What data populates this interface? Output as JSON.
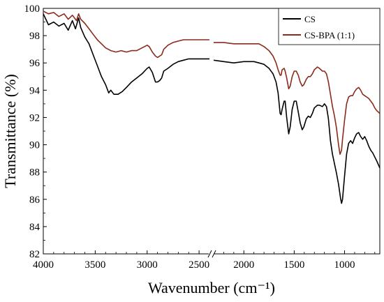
{
  "chart_data": {
    "type": "line",
    "xlabel": "Wavenumber (cm⁻¹)",
    "ylabel": "Transmittance (%)",
    "xlim": [
      4000,
      650
    ],
    "x_break": [
      2400,
      2300
    ],
    "ylim": [
      82,
      100
    ],
    "x_ticks": [
      4000,
      3500,
      3000,
      2500,
      2000,
      1500,
      1000
    ],
    "x_tick_labels": [
      "4000",
      "3500",
      "3000",
      "2500",
      "2000",
      "1500",
      "1000"
    ],
    "y_ticks": [
      82,
      84,
      86,
      88,
      90,
      92,
      94,
      96,
      98,
      100
    ],
    "y_tick_labels": [
      "82",
      "84",
      "86",
      "88",
      "90",
      "92",
      "94",
      "96",
      "98",
      "100"
    ],
    "legend_position": "top-right",
    "series": [
      {
        "name": "CS",
        "color": "#000000",
        "points": [
          [
            4000,
            99.6
          ],
          [
            3950,
            98.8
          ],
          [
            3900,
            99.0
          ],
          [
            3850,
            98.7
          ],
          [
            3800,
            98.9
          ],
          [
            3760,
            98.4
          ],
          [
            3720,
            99.1
          ],
          [
            3690,
            98.5
          ],
          [
            3660,
            99.3
          ],
          [
            3640,
            98.6
          ],
          [
            3600,
            97.9
          ],
          [
            3560,
            97.4
          ],
          [
            3520,
            96.6
          ],
          [
            3480,
            95.8
          ],
          [
            3440,
            95.0
          ],
          [
            3400,
            94.4
          ],
          [
            3370,
            93.8
          ],
          [
            3350,
            94.0
          ],
          [
            3320,
            93.7
          ],
          [
            3280,
            93.7
          ],
          [
            3240,
            93.9
          ],
          [
            3200,
            94.2
          ],
          [
            3150,
            94.6
          ],
          [
            3100,
            94.9
          ],
          [
            3050,
            95.2
          ],
          [
            3000,
            95.6
          ],
          [
            2980,
            95.7
          ],
          [
            2950,
            95.3
          ],
          [
            2920,
            94.6
          ],
          [
            2900,
            94.6
          ],
          [
            2880,
            94.7
          ],
          [
            2860,
            94.9
          ],
          [
            2840,
            95.4
          ],
          [
            2800,
            95.6
          ],
          [
            2750,
            95.9
          ],
          [
            2700,
            96.1
          ],
          [
            2650,
            96.2
          ],
          [
            2600,
            96.3
          ],
          [
            2500,
            96.3
          ],
          [
            2400,
            96.3
          ],
          [
            2300,
            96.2
          ],
          [
            2200,
            96.1
          ],
          [
            2100,
            96.0
          ],
          [
            2000,
            96.1
          ],
          [
            1900,
            96.1
          ],
          [
            1850,
            96.0
          ],
          [
            1800,
            95.9
          ],
          [
            1750,
            95.6
          ],
          [
            1710,
            95.2
          ],
          [
            1680,
            94.6
          ],
          [
            1660,
            93.8
          ],
          [
            1640,
            92.3
          ],
          [
            1630,
            92.2
          ],
          [
            1620,
            92.6
          ],
          [
            1600,
            93.2
          ],
          [
            1590,
            93.2
          ],
          [
            1575,
            92.0
          ],
          [
            1555,
            90.8
          ],
          [
            1540,
            91.3
          ],
          [
            1520,
            92.6
          ],
          [
            1500,
            93.2
          ],
          [
            1480,
            93.2
          ],
          [
            1460,
            92.4
          ],
          [
            1440,
            91.6
          ],
          [
            1420,
            91.1
          ],
          [
            1405,
            91.3
          ],
          [
            1380,
            91.9
          ],
          [
            1360,
            92.1
          ],
          [
            1340,
            92.0
          ],
          [
            1320,
            92.3
          ],
          [
            1300,
            92.7
          ],
          [
            1270,
            92.9
          ],
          [
            1250,
            92.9
          ],
          [
            1220,
            92.8
          ],
          [
            1200,
            93.0
          ],
          [
            1180,
            92.8
          ],
          [
            1160,
            91.9
          ],
          [
            1140,
            90.3
          ],
          [
            1120,
            89.3
          ],
          [
            1100,
            88.6
          ],
          [
            1080,
            87.9
          ],
          [
            1060,
            87.1
          ],
          [
            1040,
            86.1
          ],
          [
            1030,
            85.7
          ],
          [
            1020,
            86.0
          ],
          [
            1000,
            87.7
          ],
          [
            980,
            89.3
          ],
          [
            960,
            90.1
          ],
          [
            940,
            90.3
          ],
          [
            920,
            90.1
          ],
          [
            900,
            90.5
          ],
          [
            880,
            90.8
          ],
          [
            860,
            90.9
          ],
          [
            840,
            90.6
          ],
          [
            820,
            90.4
          ],
          [
            800,
            90.6
          ],
          [
            780,
            90.3
          ],
          [
            760,
            89.9
          ],
          [
            740,
            89.6
          ],
          [
            720,
            89.4
          ],
          [
            700,
            89.1
          ],
          [
            680,
            88.8
          ],
          [
            650,
            88.3
          ]
        ]
      },
      {
        "name": "CS-BPA (1:1)",
        "color": "#8b2a1a",
        "points": [
          [
            4000,
            99.8
          ],
          [
            3950,
            99.6
          ],
          [
            3900,
            99.7
          ],
          [
            3850,
            99.4
          ],
          [
            3800,
            99.6
          ],
          [
            3760,
            99.2
          ],
          [
            3720,
            99.5
          ],
          [
            3680,
            99.1
          ],
          [
            3660,
            99.6
          ],
          [
            3640,
            99.2
          ],
          [
            3600,
            98.9
          ],
          [
            3560,
            98.5
          ],
          [
            3520,
            98.1
          ],
          [
            3480,
            97.7
          ],
          [
            3440,
            97.4
          ],
          [
            3400,
            97.1
          ],
          [
            3350,
            96.9
          ],
          [
            3300,
            96.8
          ],
          [
            3250,
            96.9
          ],
          [
            3200,
            96.8
          ],
          [
            3150,
            96.9
          ],
          [
            3100,
            96.9
          ],
          [
            3050,
            97.1
          ],
          [
            3000,
            97.3
          ],
          [
            2980,
            97.2
          ],
          [
            2950,
            96.8
          ],
          [
            2920,
            96.5
          ],
          [
            2900,
            96.4
          ],
          [
            2880,
            96.5
          ],
          [
            2860,
            96.6
          ],
          [
            2840,
            97.0
          ],
          [
            2800,
            97.3
          ],
          [
            2750,
            97.5
          ],
          [
            2700,
            97.6
          ],
          [
            2650,
            97.7
          ],
          [
            2600,
            97.7
          ],
          [
            2500,
            97.7
          ],
          [
            2400,
            97.7
          ],
          [
            2300,
            97.5
          ],
          [
            2200,
            97.5
          ],
          [
            2100,
            97.4
          ],
          [
            2000,
            97.4
          ],
          [
            1900,
            97.4
          ],
          [
            1850,
            97.4
          ],
          [
            1800,
            97.2
          ],
          [
            1750,
            96.9
          ],
          [
            1710,
            96.5
          ],
          [
            1680,
            96.0
          ],
          [
            1660,
            95.5
          ],
          [
            1640,
            95.1
          ],
          [
            1630,
            95.1
          ],
          [
            1620,
            95.5
          ],
          [
            1600,
            95.6
          ],
          [
            1590,
            95.4
          ],
          [
            1575,
            94.9
          ],
          [
            1555,
            94.1
          ],
          [
            1540,
            94.3
          ],
          [
            1520,
            95.0
          ],
          [
            1500,
            95.4
          ],
          [
            1480,
            95.4
          ],
          [
            1460,
            95.1
          ],
          [
            1440,
            94.6
          ],
          [
            1420,
            94.3
          ],
          [
            1405,
            94.4
          ],
          [
            1380,
            94.8
          ],
          [
            1360,
            95.0
          ],
          [
            1340,
            95.0
          ],
          [
            1320,
            95.2
          ],
          [
            1300,
            95.5
          ],
          [
            1270,
            95.7
          ],
          [
            1250,
            95.6
          ],
          [
            1220,
            95.4
          ],
          [
            1200,
            95.4
          ],
          [
            1180,
            95.2
          ],
          [
            1160,
            94.6
          ],
          [
            1140,
            93.7
          ],
          [
            1120,
            92.8
          ],
          [
            1100,
            92.1
          ],
          [
            1080,
            91.2
          ],
          [
            1060,
            90.0
          ],
          [
            1045,
            89.3
          ],
          [
            1030,
            89.6
          ],
          [
            1020,
            90.4
          ],
          [
            1000,
            91.8
          ],
          [
            980,
            93.0
          ],
          [
            960,
            93.5
          ],
          [
            940,
            93.6
          ],
          [
            920,
            93.6
          ],
          [
            900,
            93.9
          ],
          [
            880,
            94.1
          ],
          [
            860,
            94.2
          ],
          [
            840,
            94.0
          ],
          [
            820,
            93.7
          ],
          [
            800,
            93.6
          ],
          [
            780,
            93.5
          ],
          [
            760,
            93.4
          ],
          [
            740,
            93.2
          ],
          [
            720,
            93.0
          ],
          [
            700,
            92.7
          ],
          [
            680,
            92.5
          ],
          [
            650,
            92.3
          ]
        ]
      }
    ]
  }
}
